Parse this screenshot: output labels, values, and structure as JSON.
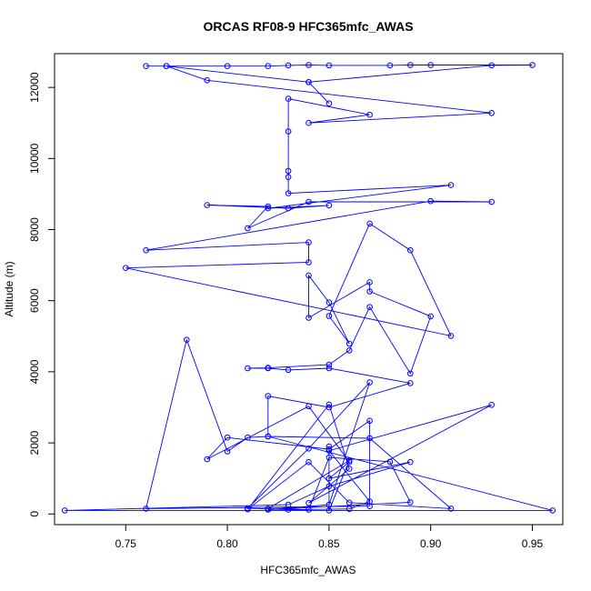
{
  "chart_data": {
    "type": "line",
    "title": "ORCAS RF08-9 HFC365mfc_AWAS",
    "xlabel": "HFC365mfc_AWAS",
    "ylabel": "Altitude (m)",
    "xlim": [
      0.715,
      0.965
    ],
    "ylim": [
      -300,
      12950
    ],
    "x_ticks": [
      0.75,
      0.8,
      0.85,
      0.9,
      0.95
    ],
    "x_tick_labels": [
      "0.75",
      "0.80",
      "0.85",
      "0.90",
      "0.95"
    ],
    "y_ticks": [
      0,
      2000,
      4000,
      6000,
      8000,
      10000,
      12000
    ],
    "y_tick_labels": [
      "0",
      "2000",
      "4000",
      "6000",
      "8000",
      "10000",
      "12000"
    ],
    "grid": false,
    "legend": "none",
    "marker": "open-circle",
    "color": "#0000ff",
    "series": [
      {
        "x": [
          0.76,
          0.77,
          0.8,
          0.82,
          0.83,
          0.84,
          0.85,
          0.88,
          0.89,
          0.9,
          0.95,
          0.93,
          0.84,
          0.85,
          0.84,
          0.77,
          0.79,
          0.93,
          0.84,
          0.87,
          0.83,
          0.83,
          0.83,
          0.83,
          0.83,
          0.91,
          0.82,
          0.85,
          0.83,
          0.79,
          0.82,
          0.81,
          0.84,
          0.93,
          0.9,
          0.76,
          0.84,
          0.84,
          0.75,
          0.91,
          0.89,
          0.87,
          0.85,
          0.86,
          0.85,
          0.84,
          0.84,
          0.87,
          0.87,
          0.9,
          0.89,
          0.87,
          0.86,
          0.85,
          0.82,
          0.81,
          0.82,
          0.83,
          0.85,
          0.89,
          0.85,
          0.82,
          0.82,
          0.81,
          0.8,
          0.78,
          0.76,
          0.87,
          0.87,
          0.85,
          0.8,
          0.79,
          0.84,
          0.86,
          0.85,
          0.89,
          0.85,
          0.83,
          0.72,
          0.96,
          0.82,
          0.87,
          0.91,
          0.86,
          0.84,
          0.81,
          0.85,
          0.86,
          0.84,
          0.93,
          0.85,
          0.87,
          0.86,
          0.83,
          0.81,
          0.84,
          0.87,
          0.85,
          0.82,
          0.89,
          0.88,
          0.85,
          0.84,
          0.82,
          0.86,
          0.85,
          0.85
        ],
        "y": [
          12600,
          12600,
          12600,
          12600,
          12620,
          12630,
          12620,
          12620,
          12630,
          12630,
          12630,
          12620,
          12150,
          11550,
          12150,
          12600,
          12200,
          11280,
          11000,
          11230,
          11680,
          10760,
          9650,
          9480,
          9020,
          9250,
          8600,
          8680,
          8600,
          8690,
          8650,
          8040,
          8780,
          8780,
          8800,
          7420,
          7640,
          7080,
          6920,
          5010,
          7420,
          8170,
          5570,
          4790,
          5950,
          6710,
          5520,
          6520,
          6260,
          5560,
          3950,
          5820,
          4600,
          4200,
          4110,
          4100,
          4100,
          4050,
          4100,
          3680,
          3000,
          3320,
          2180,
          2150,
          1760,
          4900,
          150,
          220,
          2620,
          1820,
          2150,
          1540,
          3030,
          1460,
          1000,
          1460,
          780,
          260,
          100,
          100,
          2180,
          2130,
          150,
          320,
          1460,
          130,
          3080,
          1270,
          310,
          3070,
          1780,
          350,
          140,
          120,
          160,
          1840,
          3700,
          260,
          120,
          330,
          1470,
          1590,
          120,
          150,
          1500,
          100,
          1900
        ]
      }
    ]
  }
}
